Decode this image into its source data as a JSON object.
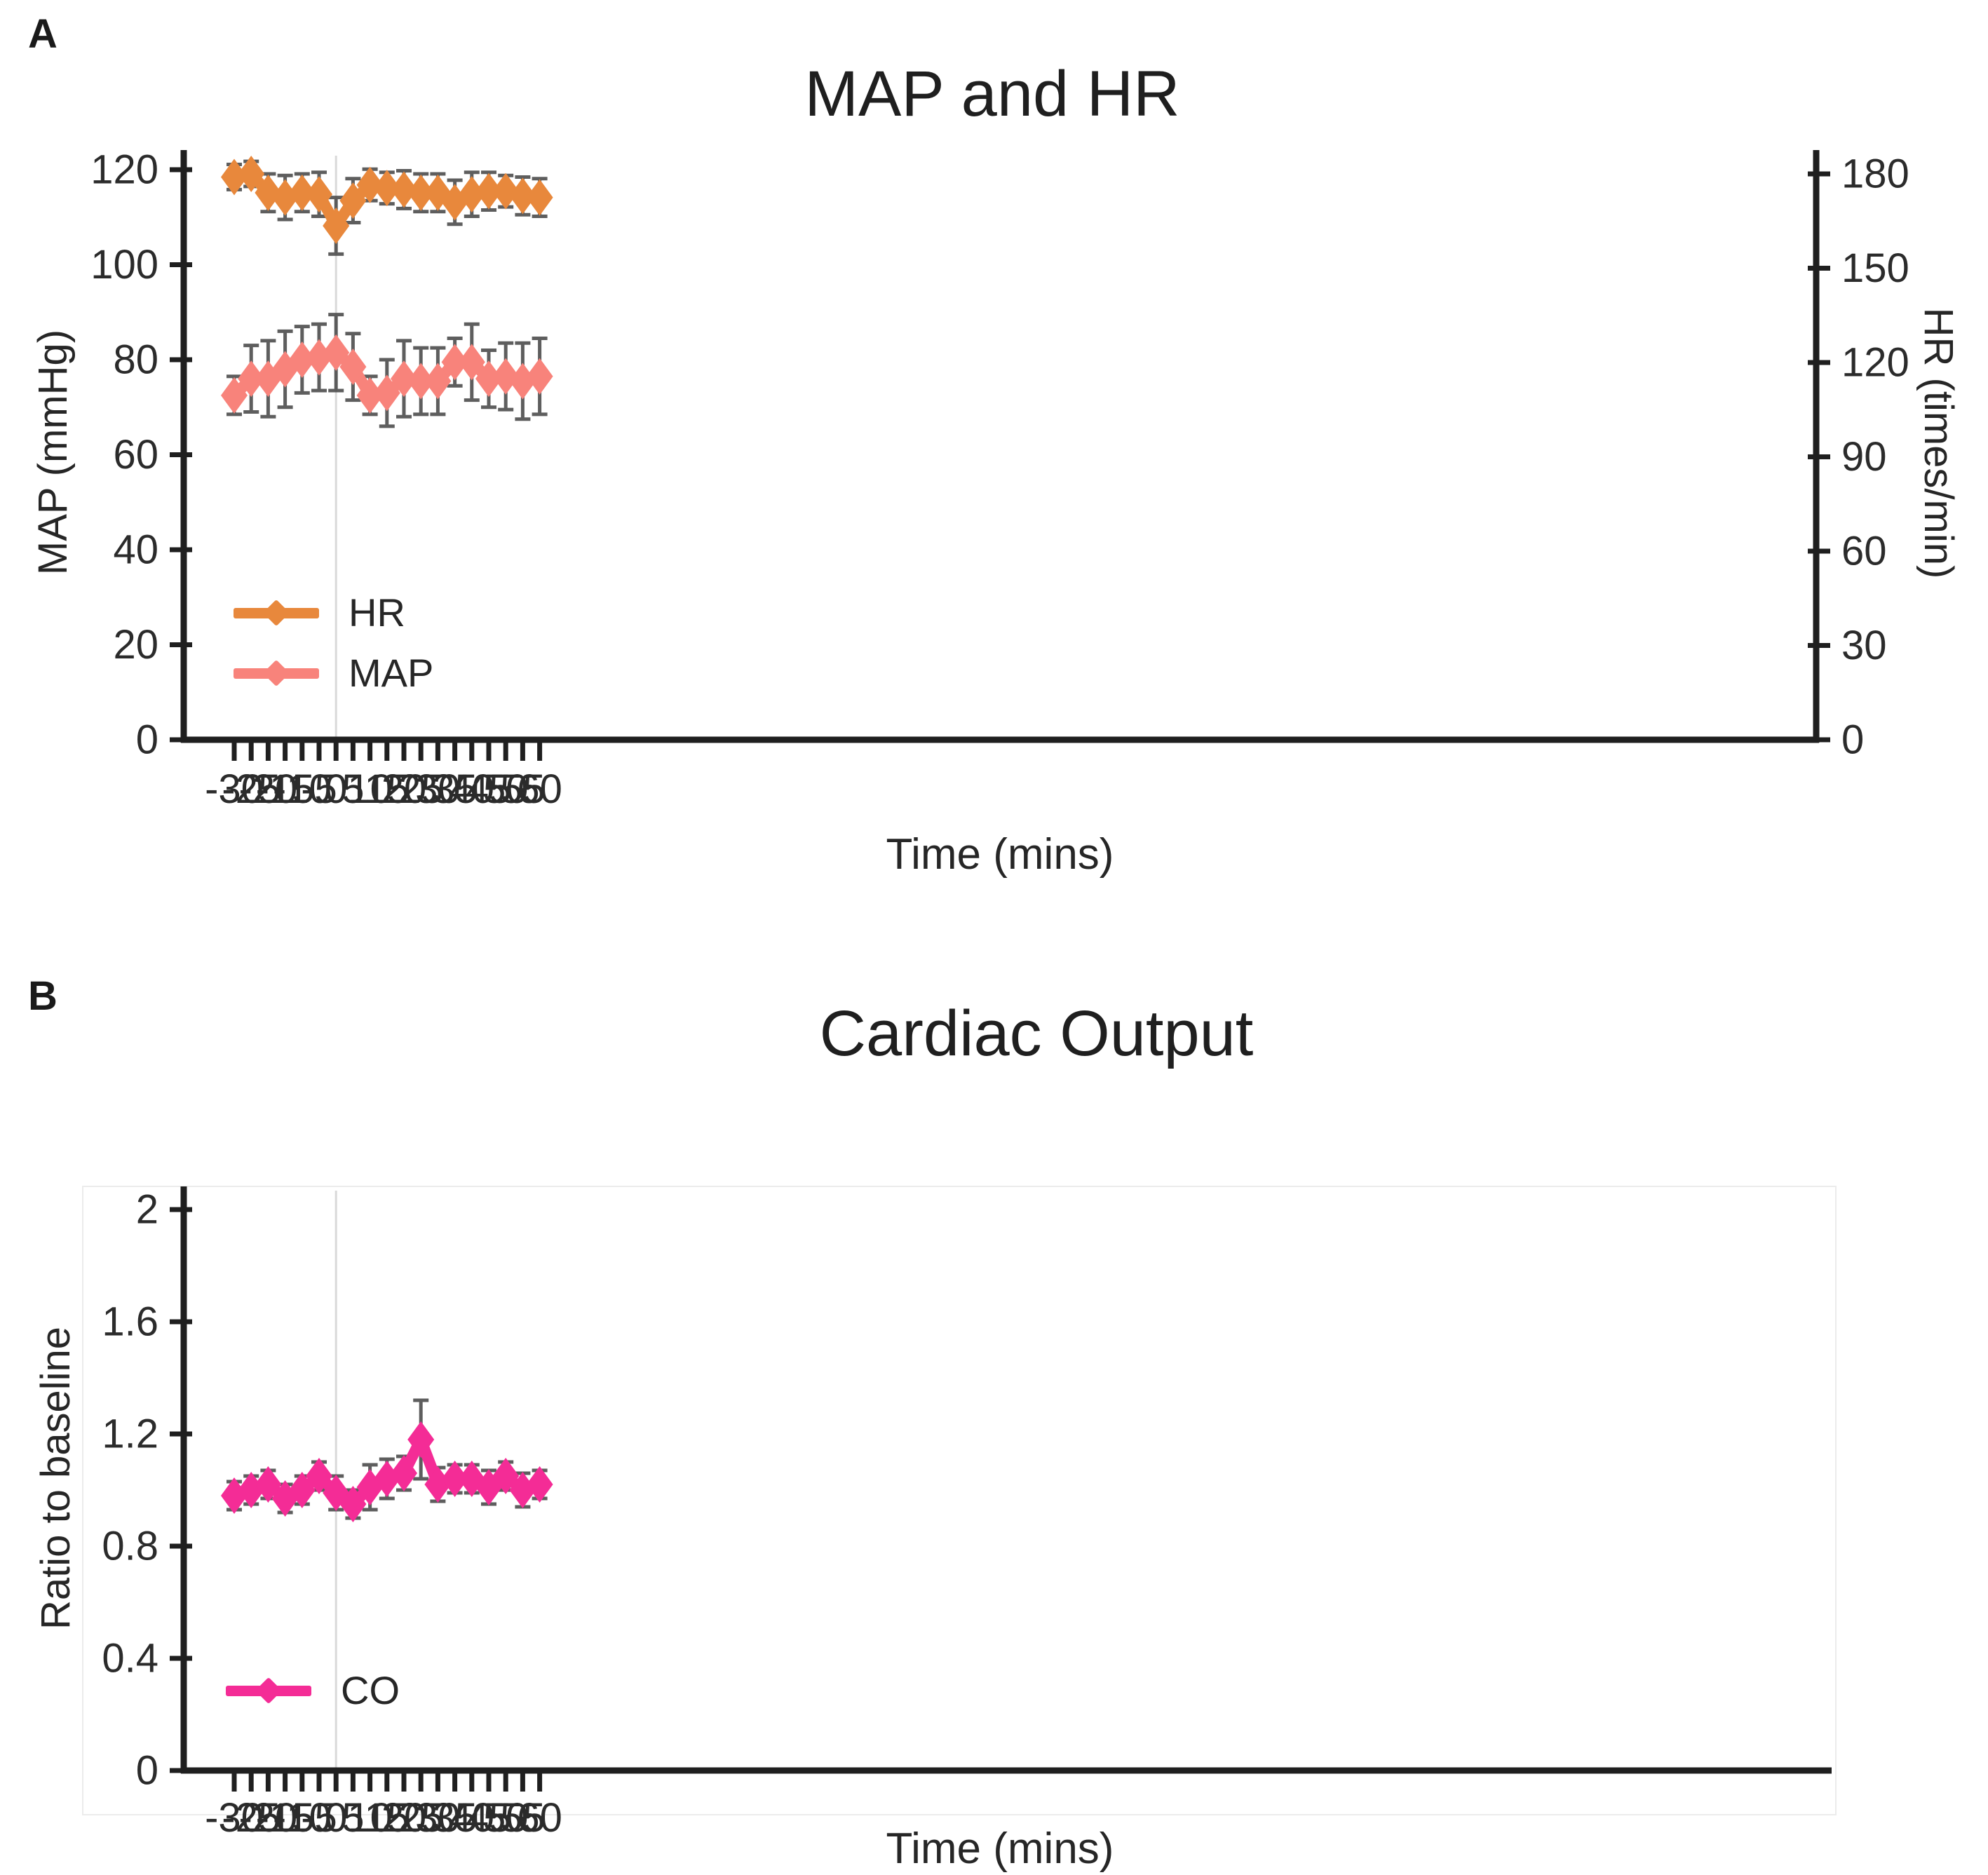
{
  "panels": {
    "a": "A",
    "b": "B"
  },
  "chart_data": [
    {
      "type": "line",
      "panel": "A",
      "title": "MAP and HR",
      "xlabel": "Time (mins)",
      "ylabel_left": "MAP (mmHg)",
      "ylabel_right": "HR (times/min)",
      "x": [
        -30,
        -25,
        -20,
        -15,
        -10,
        -5,
        0,
        5,
        10,
        15,
        20,
        25,
        30,
        35,
        40,
        45,
        50,
        55,
        60
      ],
      "ylim_left": [
        0,
        120
      ],
      "yticks_left": [
        0,
        20,
        40,
        60,
        80,
        100,
        120
      ],
      "ylim_right": [
        0,
        180
      ],
      "yticks_right": [
        0,
        30,
        60,
        90,
        120,
        150,
        180
      ],
      "grid": "single vertical reference line at x=0",
      "annotations": {
        "vline_x": 0
      },
      "legend_position": "inside lower-left",
      "error_bar_color": "#4d4d4d",
      "series": [
        {
          "name": "HR",
          "axis": "right",
          "color": "#E8883C",
          "values": [
            179,
            180,
            174,
            172.5,
            174,
            173.5,
            163.5,
            171.5,
            176.5,
            175.5,
            175,
            174,
            174,
            171,
            173.5,
            174.5,
            174.5,
            173,
            172.5
          ],
          "errors": [
            4,
            4,
            6,
            7,
            6,
            7,
            9,
            7,
            5,
            5,
            6,
            6,
            6,
            7,
            7,
            6,
            5,
            6,
            6
          ]
        },
        {
          "name": "MAP",
          "axis": "left",
          "color": "#F8837B",
          "values": [
            72.5,
            76,
            76,
            78,
            80,
            80.5,
            81.5,
            78.5,
            72.5,
            73,
            76,
            75.5,
            75.5,
            79.5,
            79.5,
            76,
            76.5,
            75.5,
            76.5
          ],
          "errors": [
            4,
            7,
            8,
            8,
            7,
            7,
            8,
            7,
            4,
            7,
            8,
            7,
            7,
            5,
            8,
            6,
            7,
            8,
            8
          ]
        }
      ]
    },
    {
      "type": "line",
      "panel": "B",
      "title": "Cardiac Output",
      "xlabel": "Time (mins)",
      "ylabel_left": "Ratio to baseline",
      "x": [
        -30,
        -25,
        -20,
        -15,
        -10,
        -5,
        0,
        5,
        10,
        15,
        20,
        25,
        30,
        35,
        40,
        45,
        50,
        55,
        60
      ],
      "ylim_left": [
        0,
        2
      ],
      "yticks_left": [
        0,
        0.4,
        0.8,
        1.2,
        1.6,
        2
      ],
      "grid": "single vertical reference line at x=0",
      "annotations": {
        "vline_x": 0
      },
      "legend_position": "inside lower-left",
      "error_bar_color": "#4d4d4d",
      "series": [
        {
          "name": "CO",
          "axis": "left",
          "color": "#F42C96",
          "values": [
            0.98,
            1.0,
            1.02,
            0.97,
            1.0,
            1.05,
            0.99,
            0.95,
            1.01,
            1.04,
            1.06,
            1.18,
            1.02,
            1.04,
            1.04,
            1.01,
            1.05,
            1.0,
            1.02
          ],
          "errors": [
            0.05,
            0.05,
            0.05,
            0.05,
            0.05,
            0.05,
            0.06,
            0.05,
            0.08,
            0.07,
            0.06,
            0.14,
            0.06,
            0.05,
            0.05,
            0.06,
            0.05,
            0.06,
            0.05
          ]
        }
      ]
    }
  ]
}
